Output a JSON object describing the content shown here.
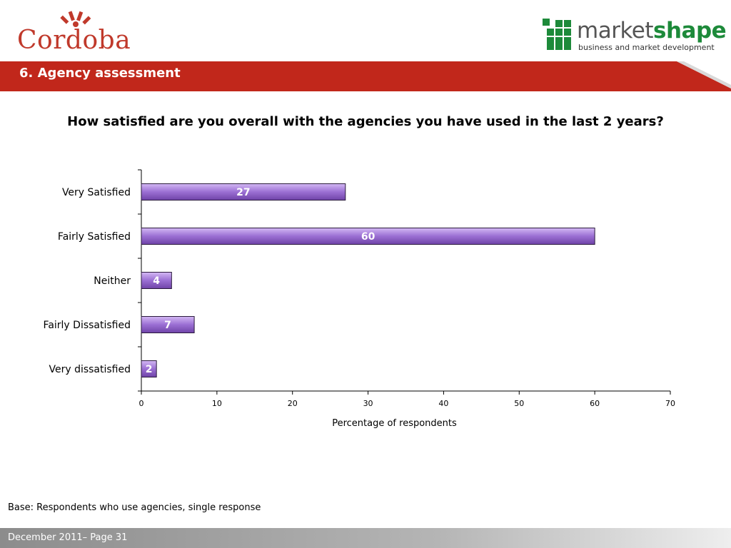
{
  "header": {
    "left_logo": "Cordoba",
    "right_logo_prefix": "market",
    "right_logo_suffix": "shape",
    "right_logo_tagline": "business and market development"
  },
  "banner": {
    "title": "6.  Agency assessment"
  },
  "question": "How satisfied are you overall with the agencies you have used in the last 2 years?",
  "colors": {
    "banner": "#c1271b",
    "bar_fill": "#9b6fd3",
    "bar_stroke": "#2b1a3d",
    "cordoba_red": "#c0392b",
    "marketshape_green": "#1d8a3a"
  },
  "chart_data": {
    "type": "bar",
    "orientation": "horizontal",
    "categories": [
      "Very Satisfied",
      "Fairly Satisfied",
      "Neither",
      "Fairly Dissatisfied",
      "Very dissatisfied"
    ],
    "values": [
      27,
      60,
      4,
      7,
      2
    ],
    "data_labels": [
      "27",
      "60",
      "4",
      "7",
      "2"
    ],
    "xlabel": "Percentage of respondents",
    "xlim": [
      0,
      70
    ],
    "xticks": [
      0,
      10,
      20,
      30,
      40,
      50,
      60,
      70
    ],
    "grid": false,
    "legend": "none"
  },
  "footer": {
    "base_note": "Base: Respondents who use agencies, single response",
    "page": "December 2011– Page 31"
  }
}
